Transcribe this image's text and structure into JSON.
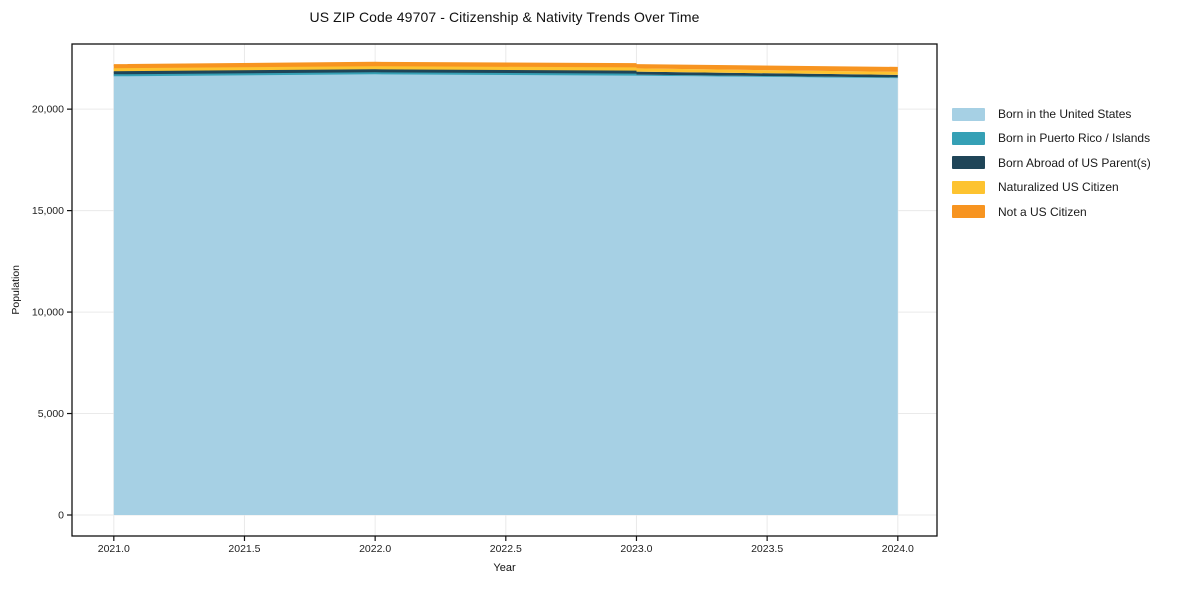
{
  "chart_data": {
    "type": "area",
    "stacked": true,
    "title": "US ZIP Code 49707 - Citizenship & Nativity Trends Over Time",
    "xlabel": "Year",
    "ylabel": "Population",
    "x": [
      2021,
      2022,
      2023,
      2024
    ],
    "series": [
      {
        "name": "Born in the United States",
        "color": "#a6d0e4",
        "values": [
          21625,
          21720,
          21650,
          21525
        ]
      },
      {
        "name": "Born in Puerto Rico / Islands",
        "color": "#35a0b5",
        "values": [
          45,
          45,
          50,
          40
        ]
      },
      {
        "name": "Born Abroad of US Parent(s)",
        "color": "#1f4558",
        "values": [
          150,
          150,
          150,
          120
        ]
      },
      {
        "name": "Naturalized US Citizen",
        "color": "#fdc330",
        "values": [
          150,
          150,
          160,
          150
        ]
      },
      {
        "name": "Not a US Citizen",
        "color": "#f79420",
        "values": [
          200,
          220,
          210,
          245
        ]
      }
    ],
    "xticks": {
      "values": [
        2021.0,
        2021.5,
        2022.0,
        2022.5,
        2023.0,
        2023.5,
        2024.0
      ],
      "labels": [
        "2021.0",
        "2021.5",
        "2022.0",
        "2022.5",
        "2023.0",
        "2023.5",
        "2024.0"
      ]
    },
    "yticks": {
      "values": [
        0,
        5000,
        10000,
        15000,
        20000
      ],
      "labels": [
        "0",
        "5,000",
        "10,000",
        "15,000",
        "20,000"
      ]
    },
    "xrange": [
      2020.84,
      2024.15
    ],
    "yrange": [
      -1035,
      23210
    ],
    "grid": true,
    "grid_color": "#eaeaea",
    "axis_color": "#111111",
    "legend_position": "right"
  }
}
